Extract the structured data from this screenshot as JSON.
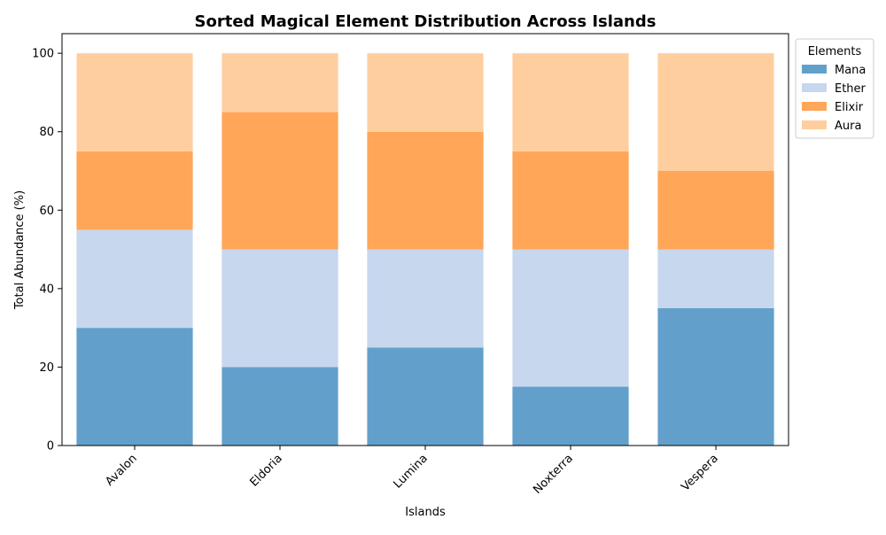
{
  "chart_data": {
    "type": "bar",
    "stacked": true,
    "title": "Sorted Magical Element Distribution Across Islands",
    "xlabel": "Islands",
    "ylabel": "Total Abundance (%)",
    "categories": [
      "Avalon",
      "Eldoria",
      "Lumina",
      "Noxterra",
      "Vespera"
    ],
    "series": [
      {
        "name": "Mana",
        "color": "#62a0cb",
        "values": [
          30,
          20,
          25,
          15,
          35
        ]
      },
      {
        "name": "Ether",
        "color": "#c6d7ee",
        "values": [
          25,
          30,
          25,
          35,
          15
        ]
      },
      {
        "name": "Elixir",
        "color": "#ffa658",
        "values": [
          20,
          35,
          30,
          25,
          20
        ]
      },
      {
        "name": "Aura",
        "color": "#ffce9f",
        "values": [
          25,
          15,
          20,
          25,
          30
        ]
      }
    ],
    "ylim": [
      0,
      105
    ],
    "yticks": [
      0,
      20,
      40,
      60,
      80,
      100
    ],
    "grid": false,
    "legend": {
      "title": "Elements",
      "placement": "outside top-right"
    }
  }
}
